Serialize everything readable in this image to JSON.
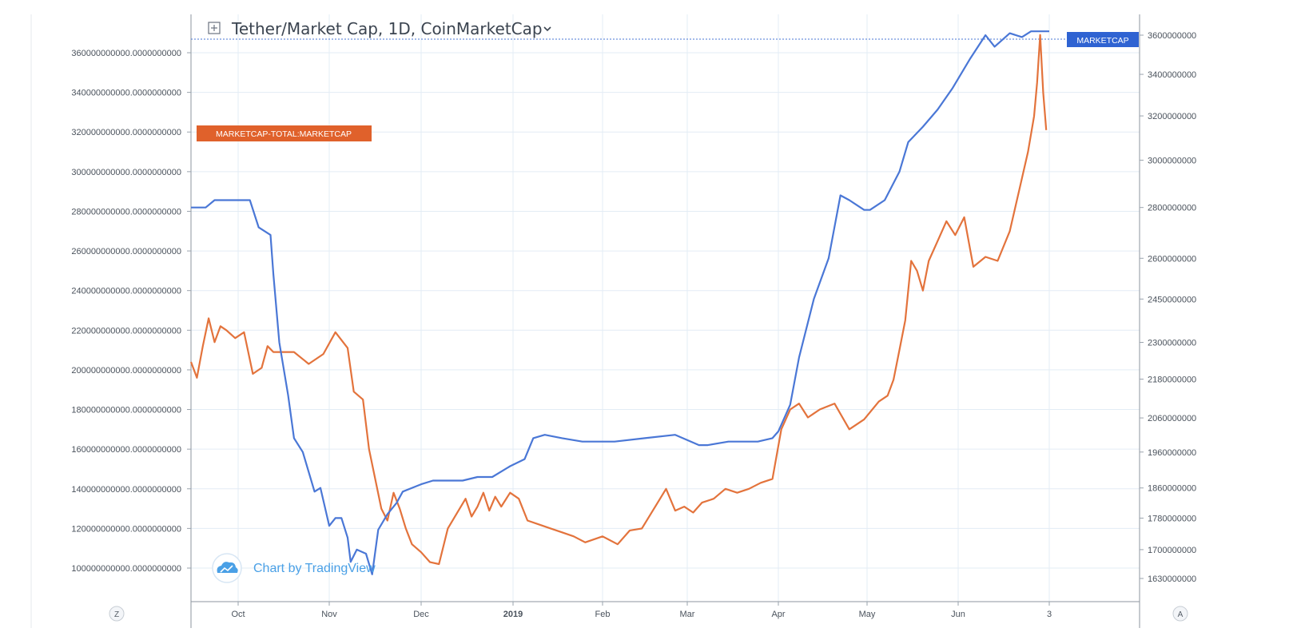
{
  "header": {
    "expand_icon": "plus-square-icon",
    "title": "Tether/Market Cap, 1D, CoinMarketCap",
    "dropdown_icon": "chevron-down-icon"
  },
  "watermark": {
    "icon": "tradingview-cloud-icon",
    "text": "Chart by TradingView"
  },
  "footer": {
    "left_button": "Z",
    "right_button": "A"
  },
  "colors": {
    "usdt": "#4a77d6",
    "total": "#e3733c",
    "usdt_tag_bg": "#2f63d2",
    "total_tag_bg": "#e0612b",
    "grid": "#e3ecf5",
    "axis": "#9aa3ad"
  },
  "chart_data": {
    "type": "line",
    "title": "Tether/Market Cap, 1D, CoinMarketCap",
    "x_tick_labels": [
      "Oct",
      "Nov",
      "Dec",
      "2019",
      "Feb",
      "Mar",
      "Apr",
      "May",
      "Jun",
      "3"
    ],
    "left_axis": {
      "ticks": [
        "100000000000.0000000000",
        "120000000000.0000000000",
        "140000000000.0000000000",
        "160000000000.0000000000",
        "180000000000.0000000000",
        "200000000000.0000000000",
        "220000000000.0000000000",
        "240000000000.0000000000",
        "260000000000.0000000000",
        "280000000000.0000000000",
        "300000000000.0000000000",
        "320000000000.0000000000",
        "340000000000.0000000000",
        "360000000000.0000000000"
      ],
      "scale": "linear",
      "range": [
        93000000000,
        373000000000
      ]
    },
    "right_axis": {
      "ticks": [
        "1630000000",
        "1700000000",
        "1780000000",
        "1860000000",
        "1960000000",
        "2060000000",
        "2180000000",
        "2300000000",
        "2450000000",
        "2600000000",
        "2800000000",
        "3000000000",
        "3200000000",
        "3400000000",
        "3600000000"
      ],
      "scale": "log"
    },
    "grid": true,
    "series": [
      {
        "name": "MARKETCAP",
        "axis": "right",
        "color": "#4a77d6",
        "tag": "MARKETCAP",
        "x": [
          "2018-09-15",
          "2018-09-20",
          "2018-09-23",
          "2018-09-25",
          "2018-10-05",
          "2018-10-08",
          "2018-10-12",
          "2018-10-13",
          "2018-10-15",
          "2018-10-18",
          "2018-10-20",
          "2018-10-23",
          "2018-10-27",
          "2018-10-29",
          "2018-11-01",
          "2018-11-03",
          "2018-11-05",
          "2018-11-07",
          "2018-11-08",
          "2018-11-10",
          "2018-11-13",
          "2018-11-15",
          "2018-11-17",
          "2018-11-20",
          "2018-11-23",
          "2018-11-25",
          "2018-12-01",
          "2018-12-05",
          "2018-12-10",
          "2018-12-15",
          "2018-12-20",
          "2018-12-25",
          "2018-12-31",
          "2019-01-05",
          "2019-01-08",
          "2019-01-12",
          "2019-01-18",
          "2019-01-25",
          "2019-02-05",
          "2019-02-15",
          "2019-02-25",
          "2019-03-05",
          "2019-03-08",
          "2019-03-15",
          "2019-03-25",
          "2019-03-30",
          "2019-04-01",
          "2019-04-05",
          "2019-04-08",
          "2019-04-13",
          "2019-04-18",
          "2019-04-22",
          "2019-04-25",
          "2019-04-30",
          "2019-05-02",
          "2019-05-07",
          "2019-05-12",
          "2019-05-15",
          "2019-05-20",
          "2019-05-25",
          "2019-05-30",
          "2019-06-05",
          "2019-06-10",
          "2019-06-13",
          "2019-06-18",
          "2019-06-22",
          "2019-06-25",
          "2019-06-28",
          "2019-07-01"
        ],
        "y": [
          2800000000,
          2800000000,
          2830000000,
          2830000000,
          2830000000,
          2720000000,
          2690000000,
          2540000000,
          2300000000,
          2130000000,
          2000000000,
          1960000000,
          1850000000,
          1860000000,
          1760000000,
          1780000000,
          1780000000,
          1730000000,
          1670000000,
          1700000000,
          1690000000,
          1640000000,
          1750000000,
          1790000000,
          1820000000,
          1850000000,
          1870000000,
          1880000000,
          1880000000,
          1880000000,
          1890000000,
          1890000000,
          1920000000,
          1940000000,
          2000000000,
          2010000000,
          2000000000,
          1990000000,
          1990000000,
          2000000000,
          2010000000,
          1980000000,
          1980000000,
          1990000000,
          1990000000,
          2000000000,
          2020000000,
          2100000000,
          2250000000,
          2450000000,
          2600000000,
          2850000000,
          2830000000,
          2790000000,
          2790000000,
          2830000000,
          2950000000,
          3080000000,
          3150000000,
          3230000000,
          3330000000,
          3480000000,
          3600000000,
          3540000000,
          3610000000,
          3590000000,
          3620000000,
          3620000000,
          3620000000
        ]
      },
      {
        "name": "MARKETCAP-TOTAL:MARKETCAP",
        "axis": "left",
        "color": "#e3733c",
        "tag": "MARKETCAP-TOTAL:MARKETCAP",
        "x": [
          "2018-09-15",
          "2018-09-17",
          "2018-09-19",
          "2018-09-21",
          "2018-09-23",
          "2018-09-25",
          "2018-09-27",
          "2018-09-30",
          "2018-10-03",
          "2018-10-06",
          "2018-10-09",
          "2018-10-11",
          "2018-10-13",
          "2018-10-15",
          "2018-10-20",
          "2018-10-25",
          "2018-10-30",
          "2018-11-03",
          "2018-11-07",
          "2018-11-09",
          "2018-11-12",
          "2018-11-14",
          "2018-11-16",
          "2018-11-18",
          "2018-11-20",
          "2018-11-22",
          "2018-11-24",
          "2018-11-26",
          "2018-11-28",
          "2018-12-01",
          "2018-12-04",
          "2018-12-07",
          "2018-12-10",
          "2018-12-14",
          "2018-12-16",
          "2018-12-18",
          "2018-12-20",
          "2018-12-22",
          "2018-12-24",
          "2018-12-26",
          "2018-12-28",
          "2018-12-31",
          "2019-01-03",
          "2019-01-06",
          "2019-01-10",
          "2019-01-14",
          "2019-01-18",
          "2019-01-22",
          "2019-01-26",
          "2019-02-01",
          "2019-02-06",
          "2019-02-10",
          "2019-02-14",
          "2019-02-18",
          "2019-02-22",
          "2019-02-25",
          "2019-02-28",
          "2019-03-03",
          "2019-03-06",
          "2019-03-10",
          "2019-03-14",
          "2019-03-18",
          "2019-03-22",
          "2019-03-26",
          "2019-03-30",
          "2019-04-02",
          "2019-04-05",
          "2019-04-08",
          "2019-04-11",
          "2019-04-15",
          "2019-04-20",
          "2019-04-25",
          "2019-04-30",
          "2019-05-05",
          "2019-05-08",
          "2019-05-10",
          "2019-05-12",
          "2019-05-14",
          "2019-05-16",
          "2019-05-18",
          "2019-05-20",
          "2019-05-22",
          "2019-05-25",
          "2019-05-28",
          "2019-05-31",
          "2019-06-03",
          "2019-06-06",
          "2019-06-10",
          "2019-06-14",
          "2019-06-18",
          "2019-06-21",
          "2019-06-24",
          "2019-06-26",
          "2019-06-27",
          "2019-06-28",
          "2019-06-29",
          "2019-06-30"
        ],
        "y": [
          204000000000,
          196000000000,
          212000000000,
          226000000000,
          214000000000,
          222000000000,
          220000000000,
          216000000000,
          219000000000,
          198000000000,
          201000000000,
          212000000000,
          209000000000,
          209000000000,
          209000000000,
          203000000000,
          208000000000,
          219000000000,
          211000000000,
          189000000000,
          185000000000,
          160000000000,
          145000000000,
          130000000000,
          124000000000,
          138000000000,
          130000000000,
          120000000000,
          112000000000,
          108000000000,
          103000000000,
          102000000000,
          120000000000,
          130000000000,
          135000000000,
          126000000000,
          131000000000,
          138000000000,
          129000000000,
          136000000000,
          131000000000,
          138000000000,
          135000000000,
          124000000000,
          122000000000,
          120000000000,
          118000000000,
          116000000000,
          113000000000,
          116000000000,
          112000000000,
          119000000000,
          120000000000,
          130000000000,
          140000000000,
          129000000000,
          131000000000,
          128000000000,
          133000000000,
          135000000000,
          140000000000,
          138000000000,
          140000000000,
          143000000000,
          145000000000,
          170000000000,
          180000000000,
          183000000000,
          176000000000,
          180000000000,
          183000000000,
          170000000000,
          175000000000,
          184000000000,
          187000000000,
          195000000000,
          210000000000,
          225000000000,
          255000000000,
          250000000000,
          240000000000,
          255000000000,
          265000000000,
          275000000000,
          268000000000,
          277000000000,
          252000000000,
          257000000000,
          255000000000,
          270000000000,
          290000000000,
          310000000000,
          328000000000,
          345000000000,
          369000000000,
          340000000000,
          321000000000
        ]
      }
    ]
  }
}
